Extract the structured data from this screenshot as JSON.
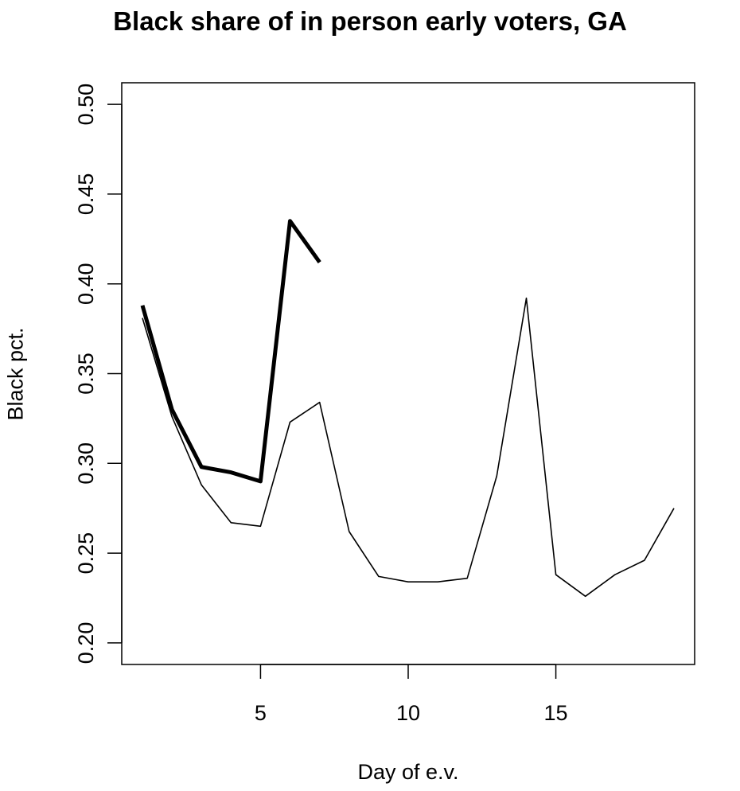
{
  "chart_data": {
    "type": "line",
    "title": "Black share of in person early voters, GA",
    "xlabel": "Day of e.v.",
    "ylabel": "Black pct.",
    "xlim": [
      0.3,
      19.7
    ],
    "ylim": [
      0.188,
      0.512
    ],
    "xticks": [
      5,
      10,
      15
    ],
    "xtick_labels": [
      "5",
      "10",
      "15"
    ],
    "yticks": [
      0.2,
      0.25,
      0.3,
      0.35,
      0.4,
      0.45,
      0.5
    ],
    "ytick_labels": [
      "0.20",
      "0.25",
      "0.30",
      "0.35",
      "0.40",
      "0.45",
      "0.50"
    ],
    "grid": false,
    "series": [
      {
        "style": "thin",
        "x": [
          1,
          2,
          3,
          4,
          5,
          6,
          7,
          8,
          9,
          10,
          11,
          12,
          13,
          14,
          15,
          16,
          17,
          18,
          19
        ],
        "values": [
          0.381,
          0.326,
          0.288,
          0.267,
          0.265,
          0.323,
          0.334,
          0.262,
          0.237,
          0.234,
          0.234,
          0.236,
          0.293,
          0.392,
          0.238,
          0.226,
          0.238,
          0.246,
          0.275
        ]
      },
      {
        "style": "thick",
        "x": [
          1,
          2,
          3,
          4,
          5,
          6,
          7
        ],
        "values": [
          0.388,
          0.33,
          0.298,
          0.295,
          0.29,
          0.435,
          0.412
        ]
      }
    ]
  }
}
